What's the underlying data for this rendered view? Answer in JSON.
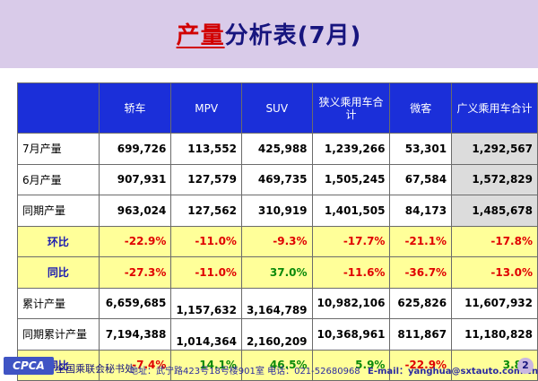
{
  "title": {
    "highlight": "产量",
    "rest": "分析表(7月)"
  },
  "table": {
    "headers": [
      "",
      "轿车",
      "MPV",
      "SUV",
      "狭义乘用车合计",
      "微客",
      "广义乘用车合计"
    ],
    "rows": [
      {
        "label": "7月产量",
        "values": [
          "699,726",
          "113,552",
          "425,988",
          "1,239,266",
          "53,301",
          "1,292,567"
        ]
      },
      {
        "label": "6月产量",
        "values": [
          "907,931",
          "127,579",
          "469,735",
          "1,505,245",
          "67,584",
          "1,572,829"
        ]
      },
      {
        "label": "同期产量",
        "values": [
          "963,024",
          "127,562",
          "310,919",
          "1,401,505",
          "84,173",
          "1,485,678"
        ]
      },
      {
        "label": "环比",
        "values": [
          "-22.9%",
          "-11.0%",
          "-9.3%",
          "-17.7%",
          "-21.1%",
          "-17.8%"
        ]
      },
      {
        "label": "同比",
        "values": [
          "-27.3%",
          "-11.0%",
          "37.0%",
          "-11.6%",
          "-36.7%",
          "-13.0%"
        ]
      },
      {
        "label": "累计产量",
        "values": [
          "6,659,685",
          "1,157,632",
          "3,164,789",
          "10,982,106",
          "625,826",
          "11,607,932"
        ]
      },
      {
        "label": "同期累计产量",
        "values": [
          "7,194,388",
          "1,014,364",
          "2,160,209",
          "10,368,961",
          "811,867",
          "11,180,828"
        ]
      },
      {
        "label": "同比",
        "values": [
          "-7.4%",
          "14.1%",
          "46.5%",
          "5.9%",
          "-22.9%",
          "3.8%"
        ]
      }
    ]
  },
  "footer": {
    "logo": "CPCA",
    "org": "全国乘联会秘书处",
    "address": "地址：武宁路423号18号楼901室  电话：021-52680968",
    "email": "E-mail：yanghua@sxtauto.com.cn",
    "page": "2"
  },
  "colors": {
    "header_bg": "#1b2fd9",
    "title": "#17157e",
    "highlight": "#d10000",
    "band": "#d9cbe9",
    "ratio_bg": "#ffff99",
    "negative": "#e00000",
    "positive": "#0a8a0a"
  }
}
